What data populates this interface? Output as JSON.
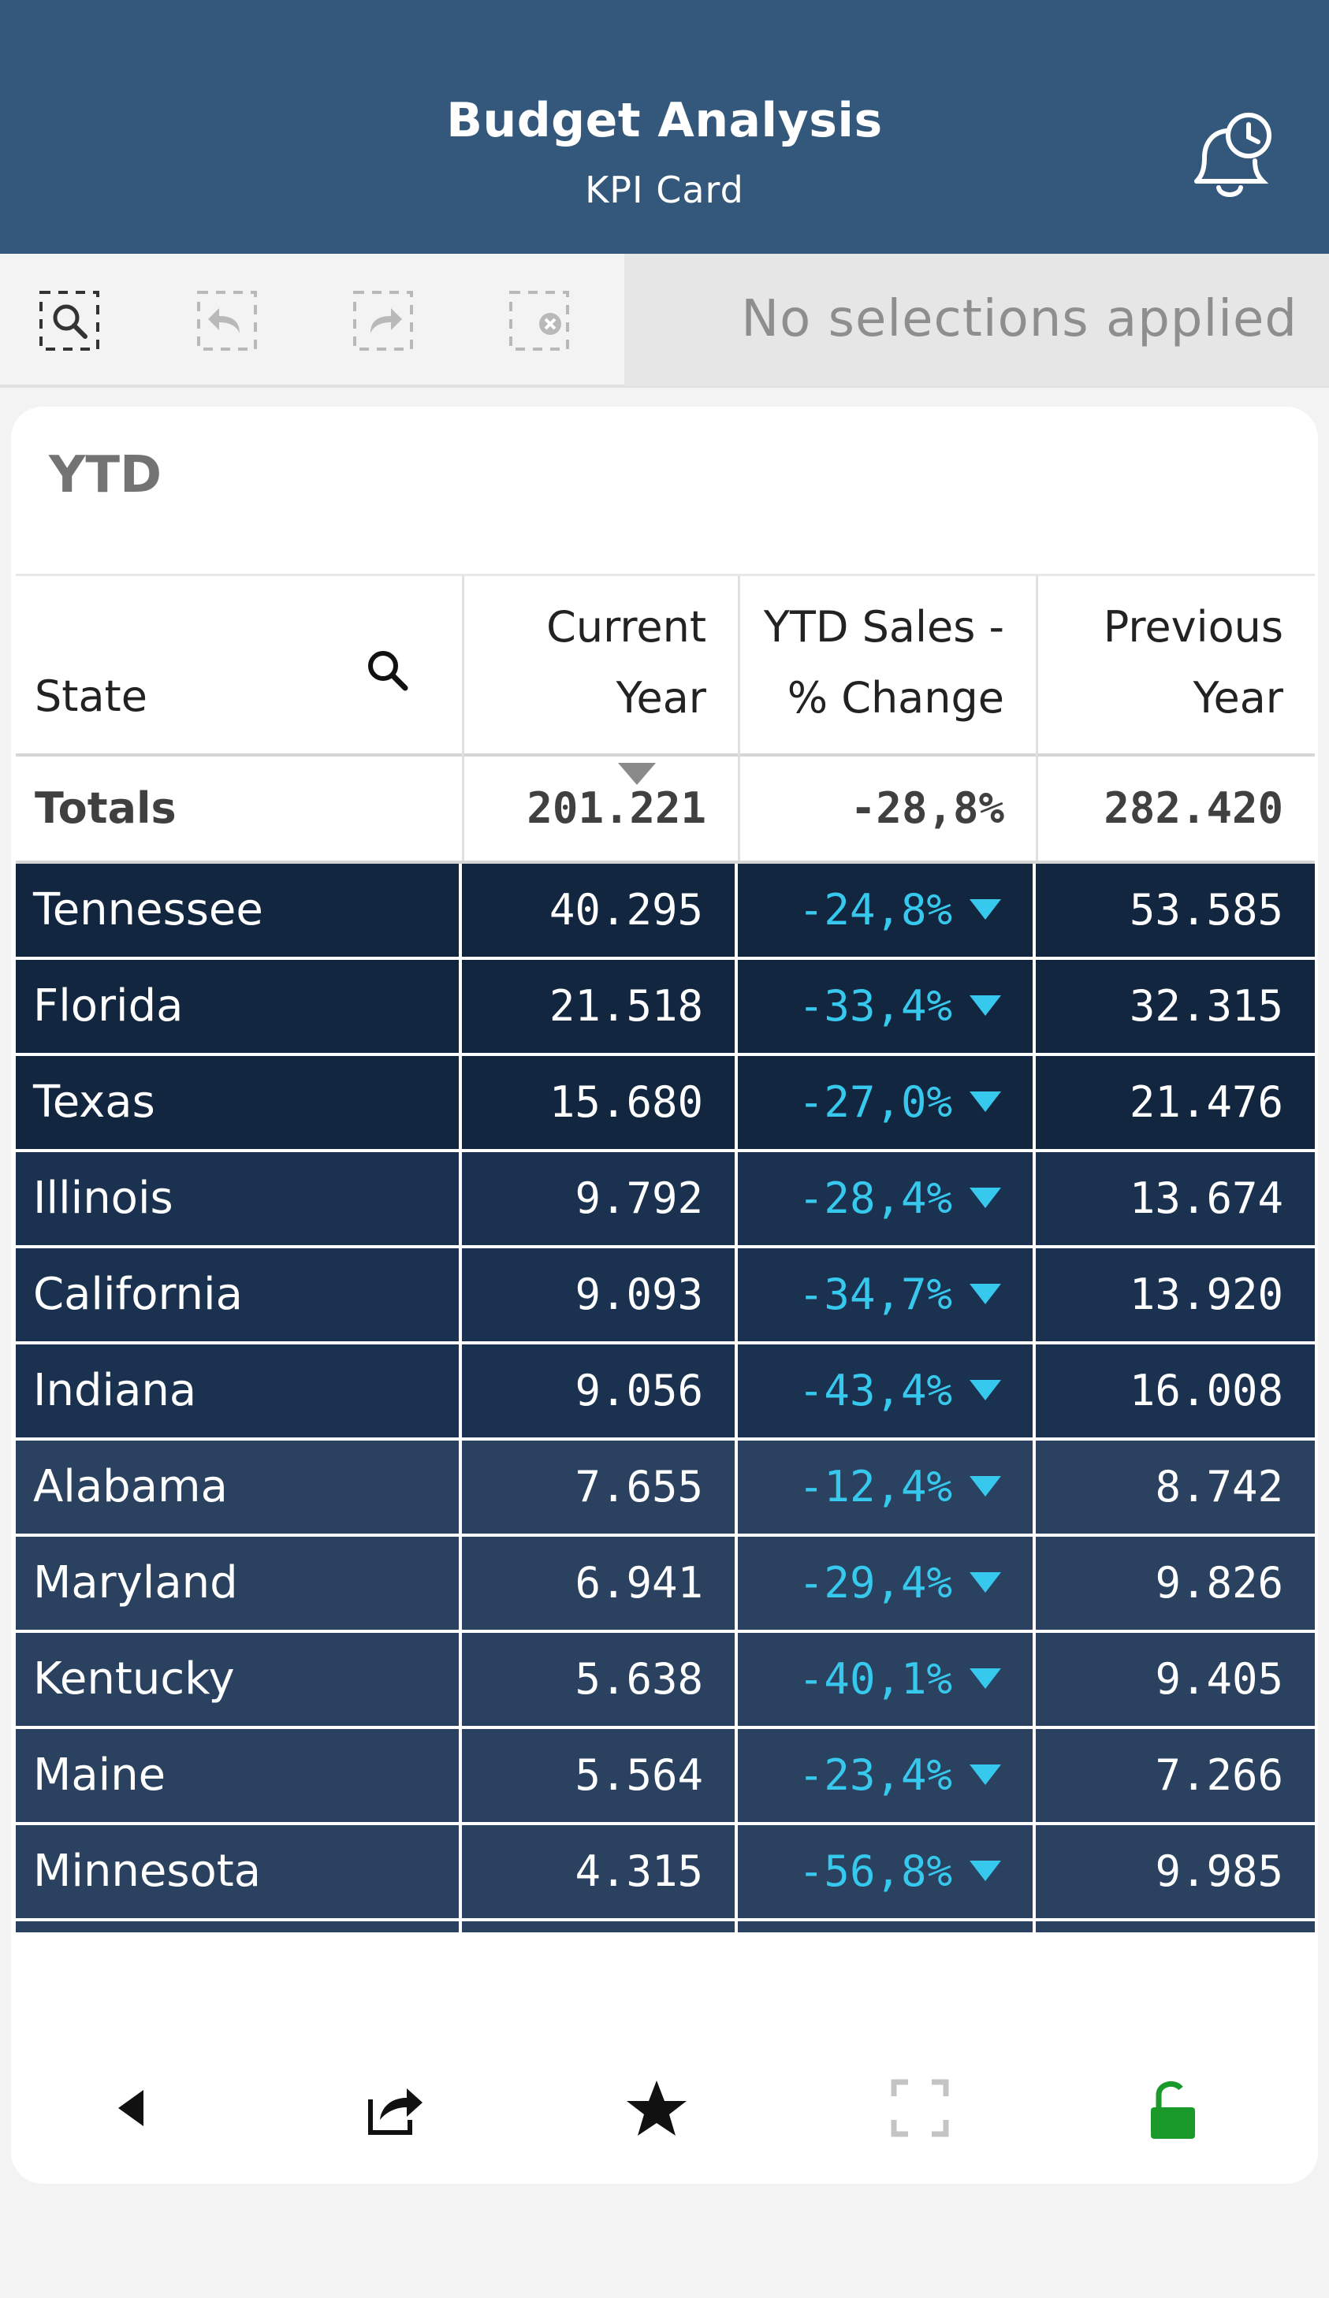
{
  "header": {
    "title": "Budget Analysis",
    "subtitle": "KPI Card"
  },
  "toolbar": {
    "selections_text": "No selections applied"
  },
  "card": {
    "title": "YTD"
  },
  "table": {
    "columns": [
      "State",
      "Current Year",
      "YTD Sales - % Change",
      "Previous Year"
    ],
    "col_lines": {
      "current": [
        "Current",
        "Year"
      ],
      "change": [
        "YTD Sales -",
        "% Change"
      ],
      "previous": [
        "Previous",
        "Year"
      ]
    },
    "totals": {
      "label": "Totals",
      "current": "201.221",
      "change": "-28,8%",
      "previous": "282.420"
    },
    "rows": [
      {
        "state": "Tennessee",
        "current": "40.295",
        "change": "-24,8%",
        "previous": "53.585"
      },
      {
        "state": "Florida",
        "current": "21.518",
        "change": "-33,4%",
        "previous": "32.315"
      },
      {
        "state": "Texas",
        "current": "15.680",
        "change": "-27,0%",
        "previous": "21.476"
      },
      {
        "state": "Illinois",
        "current": "9.792",
        "change": "-28,4%",
        "previous": "13.674"
      },
      {
        "state": "California",
        "current": "9.093",
        "change": "-34,7%",
        "previous": "13.920"
      },
      {
        "state": "Indiana",
        "current": "9.056",
        "change": "-43,4%",
        "previous": "16.008"
      },
      {
        "state": "Alabama",
        "current": "7.655",
        "change": "-12,4%",
        "previous": "8.742"
      },
      {
        "state": "Maryland",
        "current": "6.941",
        "change": "-29,4%",
        "previous": "9.826"
      },
      {
        "state": "Kentucky",
        "current": "5.638",
        "change": "-40,1%",
        "previous": "9.405"
      },
      {
        "state": "Maine",
        "current": "5.564",
        "change": "-23,4%",
        "previous": "7.266"
      },
      {
        "state": "Minnesota",
        "current": "4.315",
        "change": "-56,8%",
        "previous": "9.985"
      }
    ]
  },
  "colors": {
    "header_bg": "#34587b",
    "row_dark": "#132640",
    "row_mid": "#1b3150",
    "row_light": "#2a4260",
    "change_accent": "#37c8ee",
    "lock_green": "#1a9a2a"
  }
}
